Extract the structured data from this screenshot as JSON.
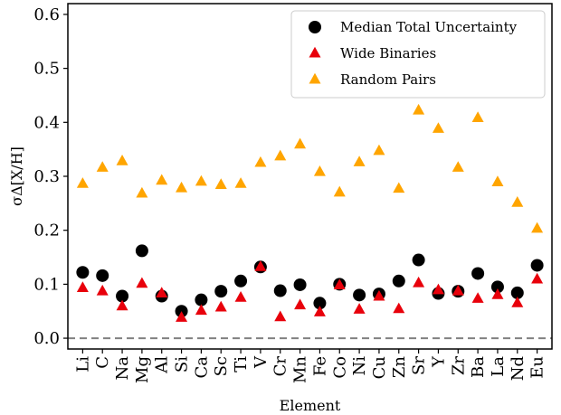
{
  "chart_data": {
    "type": "scatter",
    "title": "",
    "xlabel": "Element",
    "ylabel": "σΔ[X/H]",
    "ylim": [
      -0.02,
      0.62
    ],
    "yticks": [
      "0.0",
      "0.1",
      "0.2",
      "0.3",
      "0.4",
      "0.5",
      "0.6"
    ],
    "grid": false,
    "legend_position": "top-right",
    "reference_line": {
      "y": 0.0,
      "style": "dashed",
      "color": "#808080"
    },
    "categories": [
      "Li",
      "C",
      "Na",
      "Mg",
      "Al",
      "Si",
      "Ca",
      "Sc",
      "Ti",
      "V",
      "Cr",
      "Mn",
      "Fe",
      "Co",
      "Ni",
      "Cu",
      "Zn",
      "Sr",
      "Y",
      "Zr",
      "Ba",
      "La",
      "Nd",
      "Eu"
    ],
    "series": [
      {
        "name": "Median Total Uncertainty",
        "marker": "circle",
        "color": "#000000",
        "values": [
          0.122,
          0.116,
          0.078,
          0.162,
          0.078,
          0.05,
          0.071,
          0.087,
          0.106,
          0.132,
          0.088,
          0.099,
          0.065,
          0.1,
          0.08,
          0.082,
          0.106,
          0.145,
          0.083,
          0.087,
          0.12,
          0.095,
          0.084,
          0.135
        ]
      },
      {
        "name": "Wide Binaries",
        "marker": "triangle",
        "color": "#e8000b",
        "values": [
          0.093,
          0.087,
          0.059,
          0.101,
          0.083,
          0.038,
          0.051,
          0.057,
          0.075,
          0.132,
          0.039,
          0.061,
          0.048,
          0.098,
          0.053,
          0.077,
          0.054,
          0.102,
          0.089,
          0.087,
          0.073,
          0.08,
          0.065,
          0.109
        ]
      },
      {
        "name": "Random Pairs",
        "marker": "triangle",
        "color": "#ffa500",
        "values": [
          0.286,
          0.316,
          0.328,
          0.268,
          0.292,
          0.278,
          0.29,
          0.284,
          0.286,
          0.325,
          0.337,
          0.359,
          0.308,
          0.27,
          0.326,
          0.347,
          0.277,
          0.422,
          0.388,
          0.316,
          0.408,
          0.289,
          0.251,
          0.203
        ]
      }
    ]
  }
}
